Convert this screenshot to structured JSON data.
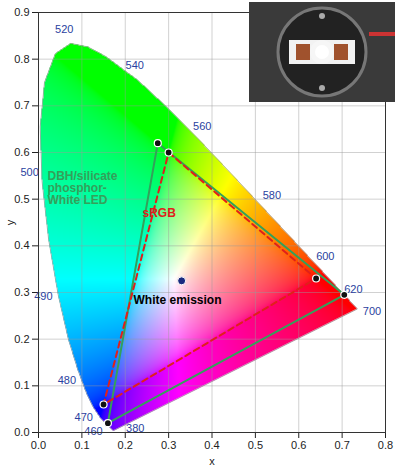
{
  "chart_data": {
    "type": "chromaticity",
    "xlabel": "x",
    "ylabel": "y",
    "xlim": [
      0,
      0.8
    ],
    "ylim": [
      0,
      0.9
    ],
    "xticks": [
      {
        "value": 0,
        "label": "0.0"
      },
      0.1,
      0.2,
      0.3,
      0.4,
      0.5,
      0.6,
      0.7,
      0.8
    ],
    "yticks": [
      {
        "value": 0,
        "label": "0.0"
      },
      0.1,
      0.2,
      0.3,
      0.4,
      0.5,
      0.6,
      0.7,
      0.8,
      0.9
    ],
    "grid": true,
    "spectral_locus": {
      "x": [
        0.1741,
        0.1714,
        0.1644,
        0.1566,
        0.144,
        0.1241,
        0.1096,
        0.0913,
        0.0687,
        0.0454,
        0.0235,
        0.0082,
        0.0039,
        0.0139,
        0.0389,
        0.0743,
        0.1142,
        0.1547,
        0.2296,
        0.3016,
        0.3731,
        0.4441,
        0.5125,
        0.5752,
        0.627,
        0.6658,
        0.6915,
        0.7079,
        0.719,
        0.726,
        0.7347
      ],
      "y": [
        0.005,
        0.0051,
        0.0109,
        0.0177,
        0.0297,
        0.0578,
        0.0868,
        0.1327,
        0.2007,
        0.295,
        0.4127,
        0.5384,
        0.6548,
        0.7502,
        0.812,
        0.8338,
        0.8262,
        0.8059,
        0.7543,
        0.6923,
        0.6245,
        0.5547,
        0.4866,
        0.4242,
        0.3725,
        0.334,
        0.3083,
        0.292,
        0.2809,
        0.274,
        0.2653
      ],
      "labels": [
        "380",
        null,
        null,
        null,
        "460",
        "470",
        null,
        "480",
        null,
        "490",
        null,
        "500",
        null,
        null,
        null,
        "520",
        null,
        null,
        "540",
        null,
        "560",
        null,
        "580",
        null,
        "600",
        null,
        "620",
        null,
        null,
        null,
        "700"
      ]
    },
    "series": [
      {
        "name": "DBH/silicate phosphor-White LED",
        "type": "polygon",
        "color": "#34a05a",
        "line_style": "solid",
        "marker": "circle",
        "x": [
          0.275,
          0.705,
          0.16
        ],
        "y": [
          0.62,
          0.295,
          0.02
        ]
      },
      {
        "name": "sRGB",
        "type": "polygon",
        "color": "#e0201b",
        "line_style": "dashed",
        "marker": "circle",
        "x": [
          0.3,
          0.64,
          0.15
        ],
        "y": [
          0.6,
          0.33,
          0.06
        ]
      },
      {
        "name": "White emission",
        "type": "point",
        "color": "#1a2a80",
        "marker": "circle",
        "x": [
          0.33
        ],
        "y": [
          0.325
        ]
      }
    ]
  }
}
